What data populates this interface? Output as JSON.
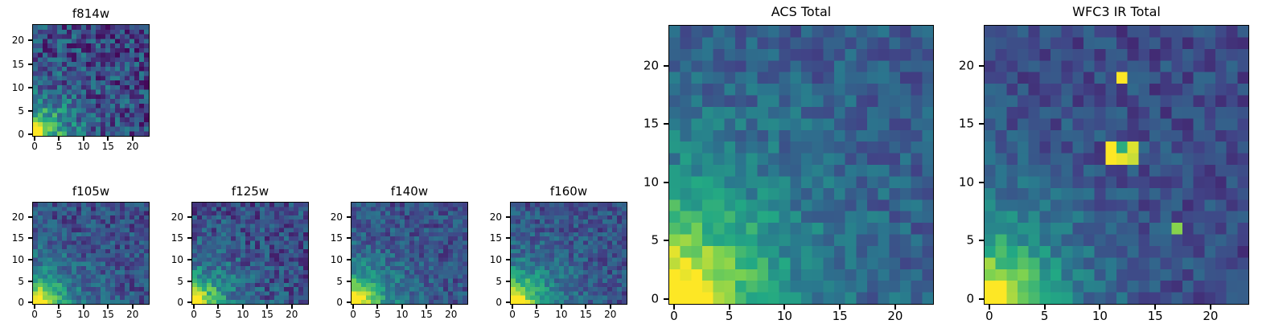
{
  "page": {
    "background": "#ffffff"
  },
  "colors": {
    "axis": "#000000",
    "viridis_stops": [
      "#440154",
      "#414487",
      "#2a788e",
      "#22a884",
      "#7ad151",
      "#fde725"
    ]
  },
  "chart_data": [
    {
      "id": "f814w",
      "type": "heatmap",
      "title": "f814w",
      "grid": 24,
      "x_range": [
        0,
        24
      ],
      "y_range": [
        0,
        24
      ],
      "x_ticks": [
        0,
        5,
        10,
        15,
        20
      ],
      "y_ticks": [
        0,
        5,
        10,
        15,
        20
      ],
      "colormap": "viridis",
      "value_range": [
        0,
        1
      ],
      "pattern": {
        "base": 1.05,
        "falloff": 4.6,
        "floor": 0.17,
        "noise": 0.42,
        "seed": 814,
        "hotspots": []
      }
    },
    {
      "id": "f105w",
      "type": "heatmap",
      "title": "f105w",
      "grid": 24,
      "x_range": [
        0,
        24
      ],
      "y_range": [
        0,
        24
      ],
      "x_ticks": [
        0,
        5,
        10,
        15,
        20
      ],
      "y_ticks": [
        0,
        5,
        10,
        15,
        20
      ],
      "colormap": "viridis",
      "value_range": [
        0,
        1
      ],
      "pattern": {
        "base": 1.05,
        "falloff": 5.0,
        "floor": 0.2,
        "noise": 0.3,
        "seed": 105,
        "hotspots": []
      }
    },
    {
      "id": "f125w",
      "type": "heatmap",
      "title": "f125w",
      "grid": 24,
      "x_range": [
        0,
        24
      ],
      "y_range": [
        0,
        24
      ],
      "x_ticks": [
        0,
        5,
        10,
        15,
        20
      ],
      "y_ticks": [
        0,
        5,
        10,
        15,
        20
      ],
      "colormap": "viridis",
      "value_range": [
        0,
        1
      ],
      "pattern": {
        "base": 1.05,
        "falloff": 4.8,
        "floor": 0.19,
        "noise": 0.34,
        "seed": 125,
        "hotspots": []
      }
    },
    {
      "id": "f140w",
      "type": "heatmap",
      "title": "f140w",
      "grid": 24,
      "x_range": [
        0,
        24
      ],
      "y_range": [
        0,
        24
      ],
      "x_ticks": [
        0,
        5,
        10,
        15,
        20
      ],
      "y_ticks": [
        0,
        5,
        10,
        15,
        20
      ],
      "colormap": "viridis",
      "value_range": [
        0,
        1
      ],
      "pattern": {
        "base": 1.05,
        "falloff": 5.2,
        "floor": 0.21,
        "noise": 0.28,
        "seed": 140,
        "hotspots": []
      }
    },
    {
      "id": "f160w",
      "type": "heatmap",
      "title": "f160w",
      "grid": 24,
      "x_range": [
        0,
        24
      ],
      "y_range": [
        0,
        24
      ],
      "x_ticks": [
        0,
        5,
        10,
        15,
        20
      ],
      "y_ticks": [
        0,
        5,
        10,
        15,
        20
      ],
      "colormap": "viridis",
      "value_range": [
        0,
        1
      ],
      "pattern": {
        "base": 1.05,
        "falloff": 5.4,
        "floor": 0.21,
        "noise": 0.27,
        "seed": 160,
        "hotspots": []
      }
    },
    {
      "id": "acs_total",
      "type": "heatmap",
      "title": "ACS Total",
      "grid": 24,
      "x_range": [
        0,
        24
      ],
      "y_range": [
        0,
        24
      ],
      "x_ticks": [
        0,
        5,
        10,
        15,
        20
      ],
      "y_ticks": [
        0,
        5,
        10,
        15,
        20
      ],
      "colormap": "viridis",
      "value_range": [
        0,
        1
      ],
      "pattern": {
        "base": 1.1,
        "falloff": 6.8,
        "floor": 0.24,
        "noise": 0.24,
        "seed": 2024,
        "hotspots": []
      }
    },
    {
      "id": "wfc3_ir_total",
      "type": "heatmap",
      "title": "WFC3 IR Total",
      "grid": 24,
      "x_range": [
        0,
        24
      ],
      "y_range": [
        0,
        24
      ],
      "x_ticks": [
        0,
        5,
        10,
        15,
        20
      ],
      "y_ticks": [
        0,
        5,
        10,
        15,
        20
      ],
      "colormap": "viridis",
      "value_range": [
        0,
        1
      ],
      "pattern": {
        "base": 1.05,
        "falloff": 4.6,
        "floor": 0.2,
        "noise": 0.22,
        "seed": 3033,
        "hotspots": [
          {
            "x": 12,
            "y": 19,
            "v": 1.0
          },
          {
            "x": 11,
            "y": 12,
            "v": 1.0
          },
          {
            "x": 12,
            "y": 12,
            "v": 0.97
          },
          {
            "x": 13,
            "y": 12,
            "v": 0.92
          },
          {
            "x": 11,
            "y": 13,
            "v": 1.0
          },
          {
            "x": 12,
            "y": 13,
            "v": 0.62
          },
          {
            "x": 13,
            "y": 13,
            "v": 0.95
          },
          {
            "x": 17,
            "y": 6,
            "v": 0.82
          }
        ]
      }
    }
  ]
}
